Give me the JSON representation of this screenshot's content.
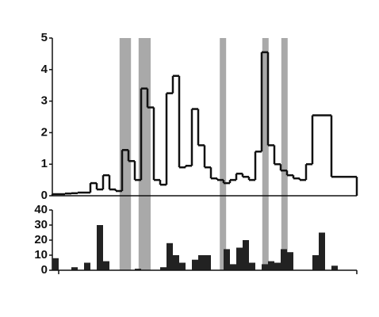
{
  "chart_data": [
    {
      "type": "step",
      "color": "#111111",
      "x": [
        0,
        1,
        2,
        3,
        4,
        5,
        6,
        7,
        8,
        9,
        10,
        11,
        12,
        13,
        14,
        15,
        16,
        17,
        18,
        19,
        20,
        21,
        22,
        23,
        24,
        25,
        26,
        27,
        28,
        29,
        30,
        31,
        32,
        33,
        34,
        35,
        36,
        37,
        38,
        39,
        40,
        41,
        42,
        43,
        44,
        45,
        46,
        47
      ],
      "values": [
        0.05,
        0.05,
        0.07,
        0.08,
        0.1,
        0.1,
        0.4,
        0.2,
        0.65,
        0.2,
        0.15,
        1.45,
        1.1,
        0.5,
        3.4,
        2.8,
        0.5,
        0.35,
        3.25,
        3.8,
        0.9,
        0.95,
        2.75,
        1.6,
        0.9,
        0.55,
        0.5,
        0.4,
        0.5,
        0.7,
        0.6,
        0.5,
        1.4,
        4.55,
        1.6,
        1.0,
        0.8,
        0.65,
        0.55,
        0.5,
        1.0,
        2.55,
        2.55,
        2.55,
        0.6,
        0.6,
        0.6,
        0.6
      ],
      "xlim": [
        0,
        48
      ],
      "ylim": [
        0,
        5
      ],
      "yticks": [
        0,
        1,
        2,
        3,
        4,
        5
      ],
      "highlight_spans": [
        [
          10.6,
          12.4
        ],
        [
          13.6,
          15.5
        ],
        [
          26.4,
          27.4
        ],
        [
          33.1,
          34.1
        ],
        [
          36.1,
          37.1
        ]
      ],
      "highlight_color": "#9a9a9a"
    },
    {
      "type": "bar",
      "color": "#222222",
      "x": [
        0,
        1,
        2,
        3,
        4,
        5,
        6,
        7,
        8,
        9,
        10,
        11,
        12,
        13,
        14,
        15,
        16,
        17,
        18,
        19,
        20,
        21,
        22,
        23,
        24,
        25,
        26,
        27,
        28,
        29,
        30,
        31,
        32,
        33,
        34,
        35,
        36,
        37,
        38,
        39,
        40,
        41,
        42,
        43,
        44,
        45,
        46,
        47
      ],
      "values": [
        8,
        0,
        0,
        2,
        0,
        5,
        0,
        30,
        6,
        0,
        0,
        0,
        0,
        1,
        0,
        0,
        0,
        2,
        18,
        10,
        5,
        0,
        7,
        10,
        10,
        0,
        0,
        14,
        4,
        15,
        20,
        5,
        0,
        4,
        6,
        5,
        14,
        12,
        0,
        0,
        0,
        10,
        25,
        0,
        3,
        0,
        0,
        0
      ],
      "xlim": [
        0,
        48
      ],
      "ylim": [
        0,
        40
      ],
      "yticks": [
        0,
        10,
        20,
        30,
        40
      ]
    }
  ]
}
